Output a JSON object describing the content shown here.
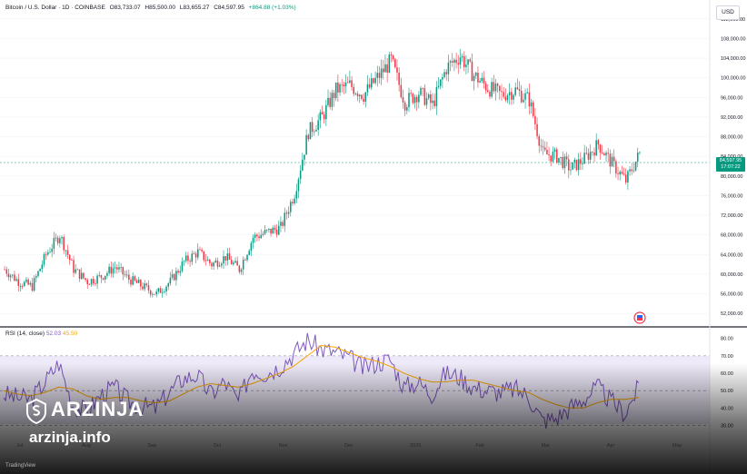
{
  "legend": {
    "symbol": "Bitcoin / U.S. Dollar · 1D · COINBASE",
    "open": "O83,733.07",
    "high": "H85,500.00",
    "low": "L83,655.27",
    "close": "C84,597.95",
    "change": "+864.88 (+1.03%)"
  },
  "currency_button": "USD",
  "price_tag": {
    "price": "84,597.95",
    "countdown": "17:07:22"
  },
  "rsi_legend": {
    "label": "RSI (14, close)",
    "rsi": "52.03",
    "ma": "45.50"
  },
  "watermark": {
    "name": "ARZINJA",
    "url": "arzinja.info"
  },
  "credit": "TradingView",
  "colors": {
    "up": "#089981",
    "down": "#f23645",
    "rsi": "#7e57c2",
    "rsi_ma": "#f7a600",
    "band": "#e8e1f7"
  },
  "chart_data": [
    {
      "type": "candlestick",
      "title": "Bitcoin / U.S. Dollar",
      "interval": "1D",
      "y_ticks": [
        52000,
        56000,
        60000,
        64000,
        68000,
        72000,
        76000,
        80000,
        84000,
        88000,
        92000,
        96000,
        100000,
        104000,
        108000,
        112000
      ],
      "ylim": [
        50000,
        114000
      ],
      "x_ticks": [
        "Jul",
        "Aug",
        "Sep",
        "Oct",
        "Nov",
        "Dec",
        "2025",
        "Feb",
        "Mar",
        "Apr",
        "May"
      ],
      "last_close": 84597.95,
      "weekly_closes": [
        [
          "Jul",
          61000
        ],
        [
          "",
          58500
        ],
        [
          "",
          57500
        ],
        [
          "",
          64000
        ],
        [
          "",
          68000
        ],
        [
          "Aug",
          61000
        ],
        [
          "",
          58500
        ],
        [
          "",
          59500
        ],
        [
          "",
          61500
        ],
        [
          "",
          59000
        ],
        [
          "Sep",
          57500
        ],
        [
          "",
          56000
        ],
        [
          "",
          58500
        ],
        [
          "",
          62500
        ],
        [
          "",
          64500
        ],
        [
          "Oct",
          62000
        ],
        [
          "",
          63500
        ],
        [
          "",
          61000
        ],
        [
          "",
          67500
        ],
        [
          "",
          68500
        ],
        [
          "Nov",
          69500
        ],
        [
          "",
          76500
        ],
        [
          "",
          89000
        ],
        [
          "",
          92000
        ],
        [
          "",
          97500
        ],
        [
          "Dec",
          98500
        ],
        [
          "",
          96500
        ],
        [
          "",
          100000
        ],
        [
          "",
          103500
        ],
        [
          "",
          95000
        ],
        [
          "2025",
          97000
        ],
        [
          "",
          94500
        ],
        [
          "",
          102000
        ],
        [
          "",
          104500
        ],
        [
          "",
          100500
        ],
        [
          "Feb",
          98000
        ],
        [
          "",
          96500
        ],
        [
          "",
          97500
        ],
        [
          "",
          95500
        ],
        [
          "",
          84500
        ],
        [
          "Mar",
          84000
        ],
        [
          "",
          81500
        ],
        [
          "",
          83500
        ],
        [
          "",
          86500
        ],
        [
          "",
          82500
        ],
        [
          "Apr",
          79000
        ],
        [
          "",
          84600
        ]
      ]
    },
    {
      "type": "line",
      "title": "RSI (14, close)",
      "y_ticks": [
        30,
        40,
        50,
        60,
        70,
        80
      ],
      "ylim": [
        25,
        83
      ],
      "levels": [
        30,
        50,
        70
      ],
      "series": [
        {
          "name": "RSI",
          "values": [
            48,
            46,
            45,
            55,
            66,
            42,
            38,
            47,
            52,
            44,
            41,
            40,
            49,
            57,
            59,
            48,
            55,
            44,
            62,
            60,
            64,
            71,
            79,
            74,
            72,
            69,
            63,
            66,
            68,
            52,
            55,
            48,
            60,
            58,
            52,
            50,
            49,
            51,
            47,
            33,
            34,
            40,
            45,
            52,
            44,
            37,
            52
          ]
        },
        {
          "name": "RSI-based MA",
          "values": [
            50,
            48,
            47,
            49,
            52,
            51,
            47,
            45,
            46,
            46,
            44,
            43,
            44,
            48,
            52,
            54,
            53,
            52,
            54,
            57,
            60,
            64,
            70,
            76,
            75,
            72,
            69,
            67,
            64,
            60,
            57,
            55,
            55,
            56,
            56,
            54,
            52,
            50,
            49,
            45,
            42,
            40,
            40,
            43,
            45,
            45,
            46
          ]
        }
      ]
    }
  ]
}
